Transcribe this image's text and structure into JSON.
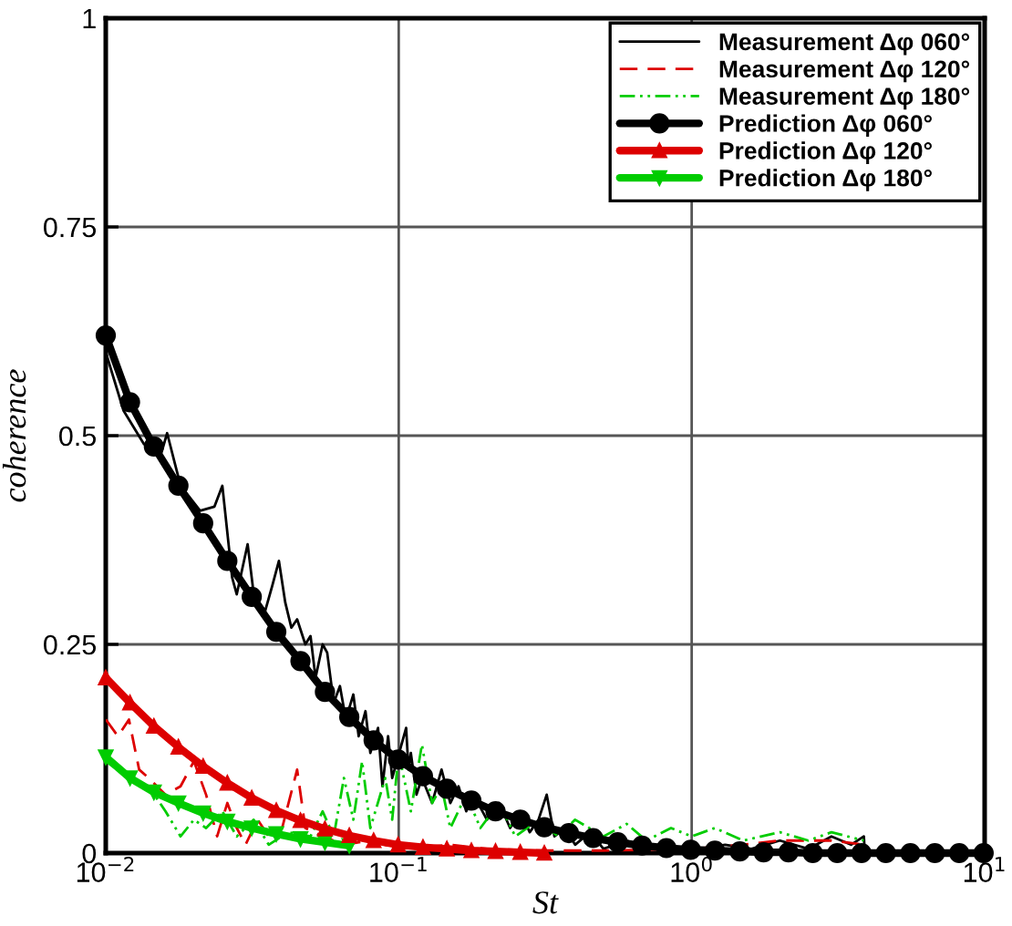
{
  "chart_data": {
    "type": "line",
    "xlabel": "St",
    "ylabel": "coherence",
    "log": "x",
    "grid": true,
    "legend": "top right",
    "xlim": [
      0.01,
      10
    ],
    "xticks": [
      {
        "value": 0.01,
        "label": "10$^{−2}$"
      },
      {
        "value": 0.1,
        "label": "10$^{−1}$"
      },
      {
        "value": 1,
        "label": "10$^{0}$"
      },
      {
        "value": 10,
        "label": "10$^{1}$"
      }
    ],
    "ylim": [
      0,
      1
    ],
    "yticks": [
      0,
      0.25,
      0.5,
      0.75,
      1
    ],
    "series": [
      {
        "name": "Measurement Δφ 060°",
        "color": "#000000",
        "line_style": "solid",
        "marker": "none",
        "x": [
          0.01,
          0.0115,
          0.0135,
          0.0155,
          0.0162,
          0.018,
          0.021,
          0.0235,
          0.025,
          0.027,
          0.028,
          0.0305,
          0.032,
          0.035,
          0.037,
          0.039,
          0.041,
          0.043,
          0.045,
          0.048,
          0.05,
          0.052,
          0.055,
          0.057,
          0.06,
          0.063,
          0.066,
          0.07,
          0.073,
          0.077,
          0.08,
          0.085,
          0.088,
          0.092,
          0.095,
          0.106,
          0.108,
          0.11,
          0.115,
          0.12,
          0.13,
          0.14,
          0.15,
          0.16,
          0.17,
          0.18,
          0.2,
          0.22,
          0.24,
          0.26,
          0.28,
          0.3,
          0.32,
          0.34,
          0.37,
          0.4,
          0.45,
          0.5,
          0.6,
          0.7,
          0.8,
          1.0,
          1.3,
          1.6,
          2.0,
          2.5,
          3.0,
          3.5,
          3.87,
          3.9
        ],
        "values": [
          0.6,
          0.53,
          0.49,
          0.48,
          0.503,
          0.44,
          0.41,
          0.415,
          0.44,
          0.33,
          0.31,
          0.37,
          0.31,
          0.29,
          0.32,
          0.35,
          0.3,
          0.27,
          0.28,
          0.25,
          0.26,
          0.21,
          0.25,
          0.24,
          0.18,
          0.2,
          0.16,
          0.19,
          0.14,
          0.17,
          0.12,
          0.15,
          0.08,
          0.14,
          0.09,
          0.15,
          0.1,
          0.12,
          0.07,
          0.09,
          0.06,
          0.1,
          0.06,
          0.08,
          0.05,
          0.07,
          0.04,
          0.06,
          0.03,
          0.05,
          0.025,
          0.04,
          0.07,
          0.02,
          0.03,
          0.01,
          0.025,
          0.005,
          0.015,
          0.005,
          0.01,
          0.003,
          0.01,
          0.005,
          0.015,
          0.005,
          0.02,
          0.01,
          0.02,
          0
        ]
      },
      {
        "name": "Measurement Δφ 120°",
        "color": "#dd0000",
        "line_style": "dashed",
        "marker": "none",
        "x": [
          0.01,
          0.011,
          0.012,
          0.013,
          0.014,
          0.016,
          0.018,
          0.02,
          0.022,
          0.024,
          0.026,
          0.028,
          0.03,
          0.033,
          0.036,
          0.04,
          0.045,
          0.048,
          0.055,
          0.065,
          0.08,
          0.1,
          0.15,
          0.2,
          0.3,
          0.5,
          1,
          1.5,
          2,
          3,
          3.87
        ],
        "values": [
          0.16,
          0.14,
          0.16,
          0.1,
          0.09,
          0.07,
          0.08,
          0.11,
          0.07,
          0.02,
          0.06,
          0.03,
          0.01,
          0.04,
          0.02,
          0.03,
          0.1,
          0.03,
          0.02,
          0.01,
          0.015,
          0.005,
          0.01,
          0.005,
          0.003,
          0.003,
          0.005,
          0.01,
          0.015,
          0.015,
          0.01
        ]
      },
      {
        "name": "Measurement Δφ 180°",
        "color": "#00cc00",
        "line_style": "dashdotdot",
        "marker": "none",
        "x": [
          0.01,
          0.012,
          0.014,
          0.016,
          0.018,
          0.02,
          0.022,
          0.025,
          0.028,
          0.032,
          0.036,
          0.042,
          0.05,
          0.055,
          0.06,
          0.065,
          0.07,
          0.075,
          0.08,
          0.09,
          0.095,
          0.1,
          0.11,
          0.12,
          0.13,
          0.14,
          0.15,
          0.17,
          0.19,
          0.22,
          0.25,
          0.3,
          0.35,
          0.4,
          0.5,
          0.6,
          0.7,
          0.85,
          1.0,
          1.2,
          1.5,
          2,
          2.5,
          3,
          3.87
        ],
        "values": [
          0.11,
          0.09,
          0.08,
          0.05,
          0.02,
          0.04,
          0.03,
          0.05,
          0.02,
          0.04,
          0.01,
          0.025,
          0.02,
          0.05,
          0.02,
          0.09,
          0.04,
          0.11,
          0.03,
          0.09,
          0.04,
          0.12,
          0.05,
          0.13,
          0.06,
          0.08,
          0.03,
          0.07,
          0.03,
          0.06,
          0.02,
          0.04,
          0.02,
          0.04,
          0.02,
          0.035,
          0.015,
          0.03,
          0.02,
          0.03,
          0.015,
          0.025,
          0.015,
          0.025,
          0.015
        ]
      },
      {
        "name": "Prediction Δφ 060°",
        "color": "#000000",
        "line_style": "solid",
        "marker": "circle",
        "x": [
          0.01,
          0.0121,
          0.0146,
          0.0177,
          0.0215,
          0.026,
          0.0315,
          0.0382,
          0.0462,
          0.056,
          0.0678,
          0.0821,
          0.0995,
          0.121,
          0.146,
          0.177,
          0.214,
          0.26,
          0.314,
          0.381,
          0.461,
          0.559,
          0.677,
          0.82,
          0.993,
          1.2,
          1.46,
          1.76,
          2.14,
          2.59,
          3.14,
          3.8,
          4.6,
          5.58,
          6.76,
          8.19,
          9.92
        ],
        "values": [
          0.62,
          0.54,
          0.487,
          0.44,
          0.395,
          0.35,
          0.307,
          0.265,
          0.23,
          0.193,
          0.163,
          0.135,
          0.112,
          0.092,
          0.077,
          0.063,
          0.05,
          0.04,
          0.031,
          0.024,
          0.018,
          0.013,
          0.009,
          0.006,
          0.004,
          0.003,
          0.002,
          0.001,
          0.001,
          0,
          0,
          0,
          0,
          0,
          0,
          0,
          0
        ]
      },
      {
        "name": "Prediction Δφ 120°",
        "color": "#dd0000",
        "line_style": "solid",
        "marker": "triangle",
        "x": [
          0.01,
          0.0121,
          0.0146,
          0.0177,
          0.0215,
          0.026,
          0.0315,
          0.0382,
          0.0462,
          0.056,
          0.0678,
          0.0821,
          0.0995,
          0.121,
          0.146,
          0.177,
          0.214,
          0.26,
          0.314
        ],
        "values": [
          0.21,
          0.18,
          0.152,
          0.127,
          0.104,
          0.084,
          0.066,
          0.051,
          0.039,
          0.029,
          0.021,
          0.015,
          0.01,
          0.007,
          0.005,
          0.003,
          0.002,
          0.001,
          0
        ]
      },
      {
        "name": "Prediction Δφ 180°",
        "color": "#00cc00",
        "line_style": "solid",
        "marker": "triangle_down",
        "x": [
          0.01,
          0.0121,
          0.0146,
          0.0177,
          0.0215,
          0.026,
          0.0315,
          0.0382,
          0.0462,
          0.056,
          0.0678
        ],
        "values": [
          0.115,
          0.09,
          0.073,
          0.06,
          0.048,
          0.038,
          0.03,
          0.023,
          0.017,
          0.013,
          0.009
        ]
      }
    ]
  }
}
